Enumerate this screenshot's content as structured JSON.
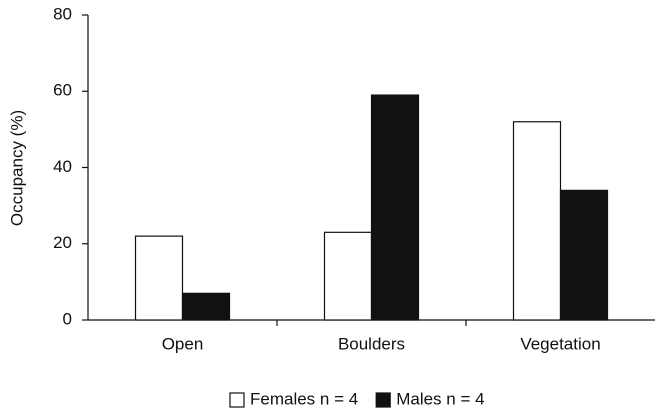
{
  "chart_data": {
    "type": "bar",
    "y_label": "Occupancy (%)",
    "categories": [
      "Open",
      "Boulders",
      "Vegetation"
    ],
    "series": [
      {
        "name": "Females n = 4",
        "color": "#ffffff",
        "values": [
          22,
          23,
          52
        ]
      },
      {
        "name": "Males n = 4",
        "color": "#111111",
        "values": [
          7,
          59,
          34
        ]
      }
    ],
    "ylim": [
      0,
      80
    ],
    "yticks": [
      0,
      20,
      40,
      60,
      80
    ],
    "grid": false
  }
}
